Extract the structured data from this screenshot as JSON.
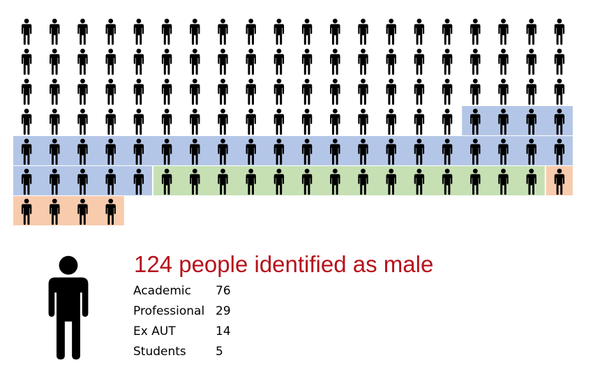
{
  "headline": "124 people identified as male",
  "chart_data": {
    "type": "pictogram",
    "total": 124,
    "per_icon": 1,
    "icon": "person-icon",
    "icon_color": "#000000",
    "series": [
      {
        "name": "Academic",
        "value": 76,
        "color": "#ffffff"
      },
      {
        "name": "Professional",
        "value": 29,
        "color": "#b4c6e7"
      },
      {
        "name": "Ex AUT",
        "value": 14,
        "color": "#c6e0b4"
      },
      {
        "name": "Students",
        "value": 5,
        "color": "#f8cbad"
      }
    ]
  },
  "legend": [
    {
      "label": "Academic",
      "value": "76"
    },
    {
      "label": "Professional",
      "value": "29"
    },
    {
      "label": "Ex AUT",
      "value": "14"
    },
    {
      "label": "Students",
      "value": "5"
    }
  ]
}
